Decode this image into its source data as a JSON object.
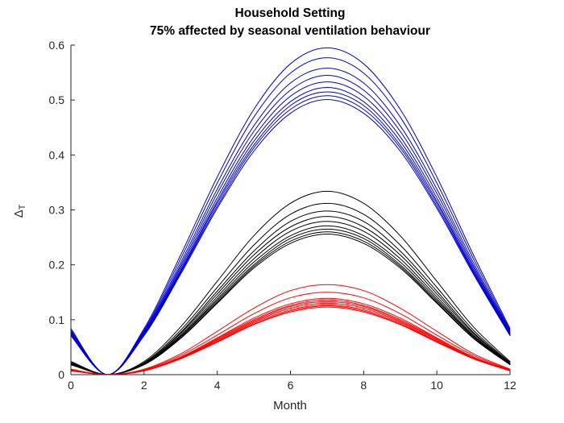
{
  "figure": {
    "background": "#ffffff",
    "axis_color": "#262626"
  },
  "chart_data": {
    "type": "line",
    "title": "Household Setting",
    "subtitle": "75% affected by seasonal ventilation behaviour",
    "xlabel": "Month",
    "ylabel": {
      "base": "Δ",
      "sub": "T"
    },
    "xlim": [
      0,
      12
    ],
    "ylim": [
      0,
      0.6
    ],
    "xticks": [
      0,
      2,
      4,
      6,
      8,
      10,
      12
    ],
    "xtick_labels": [
      "0",
      "2",
      "4",
      "6",
      "8",
      "10",
      "12"
    ],
    "ytick_values": [
      0,
      0.1,
      0.2,
      0.3,
      0.4,
      0.5,
      0.6
    ],
    "ytick_labels": [
      "0",
      "0.1",
      "0.2",
      "0.3",
      "0.4",
      "0.5",
      "0.6"
    ],
    "grid": false,
    "legend": "none",
    "box": false,
    "colors": {
      "blue": "#0000CC",
      "black": "#000000",
      "red": "#FF0000"
    },
    "months": [
      0,
      1,
      2,
      3,
      4,
      5,
      6,
      7,
      8,
      9,
      10,
      11,
      12
    ],
    "series": [
      {
        "name": "blue-1",
        "group": "blue",
        "peak": 0.595,
        "values": [
          0.084,
          0,
          0.084,
          0.218,
          0.36,
          0.483,
          0.566,
          0.595,
          0.566,
          0.483,
          0.36,
          0.218,
          0.084
        ]
      },
      {
        "name": "blue-2",
        "group": "blue",
        "peak": 0.577,
        "values": [
          0.081,
          0,
          0.081,
          0.211,
          0.349,
          0.469,
          0.549,
          0.577,
          0.549,
          0.469,
          0.349,
          0.211,
          0.081
        ]
      },
      {
        "name": "blue-3",
        "group": "blue",
        "peak": 0.558,
        "values": [
          0.079,
          0,
          0.079,
          0.204,
          0.338,
          0.453,
          0.531,
          0.558,
          0.531,
          0.453,
          0.338,
          0.204,
          0.079
        ]
      },
      {
        "name": "blue-4",
        "group": "blue",
        "peak": 0.545,
        "values": [
          0.077,
          0,
          0.077,
          0.199,
          0.33,
          0.443,
          0.518,
          0.545,
          0.518,
          0.443,
          0.33,
          0.199,
          0.077
        ]
      },
      {
        "name": "blue-5",
        "group": "blue",
        "peak": 0.533,
        "values": [
          0.075,
          0,
          0.075,
          0.195,
          0.322,
          0.433,
          0.507,
          0.533,
          0.507,
          0.433,
          0.322,
          0.195,
          0.075
        ]
      },
      {
        "name": "blue-6",
        "group": "blue",
        "peak": 0.523,
        "values": [
          0.074,
          0,
          0.074,
          0.191,
          0.316,
          0.425,
          0.497,
          0.523,
          0.497,
          0.425,
          0.316,
          0.191,
          0.074
        ]
      },
      {
        "name": "blue-7",
        "group": "blue",
        "peak": 0.515,
        "values": [
          0.073,
          0,
          0.073,
          0.188,
          0.312,
          0.418,
          0.49,
          0.515,
          0.49,
          0.418,
          0.312,
          0.188,
          0.073
        ]
      },
      {
        "name": "blue-8",
        "group": "blue",
        "peak": 0.508,
        "values": [
          0.072,
          0,
          0.072,
          0.186,
          0.307,
          0.413,
          0.483,
          0.508,
          0.483,
          0.413,
          0.307,
          0.186,
          0.072
        ]
      },
      {
        "name": "blue-9",
        "group": "blue",
        "peak": 0.501,
        "values": [
          0.071,
          0,
          0.071,
          0.183,
          0.303,
          0.407,
          0.476,
          0.501,
          0.476,
          0.407,
          0.303,
          0.183,
          0.071
        ]
      },
      {
        "name": "black-1",
        "group": "black",
        "peak": 0.334,
        "values": [
          0.024,
          0,
          0.024,
          0.087,
          0.17,
          0.253,
          0.312,
          0.334,
          0.312,
          0.253,
          0.17,
          0.087,
          0.024
        ]
      },
      {
        "name": "black-2",
        "group": "black",
        "peak": 0.312,
        "values": [
          0.022,
          0,
          0.022,
          0.081,
          0.159,
          0.236,
          0.292,
          0.312,
          0.292,
          0.236,
          0.159,
          0.081,
          0.022
        ]
      },
      {
        "name": "black-3",
        "group": "black",
        "peak": 0.298,
        "values": [
          0.021,
          0,
          0.021,
          0.077,
          0.152,
          0.225,
          0.279,
          0.298,
          0.279,
          0.225,
          0.152,
          0.077,
          0.021
        ]
      },
      {
        "name": "black-4",
        "group": "black",
        "peak": 0.288,
        "values": [
          0.021,
          0,
          0.021,
          0.075,
          0.147,
          0.218,
          0.269,
          0.288,
          0.269,
          0.218,
          0.147,
          0.075,
          0.021
        ]
      },
      {
        "name": "black-5",
        "group": "black",
        "peak": 0.279,
        "values": [
          0.02,
          0,
          0.02,
          0.072,
          0.142,
          0.211,
          0.261,
          0.279,
          0.261,
          0.211,
          0.142,
          0.072,
          0.02
        ]
      },
      {
        "name": "black-6",
        "group": "black",
        "peak": 0.271,
        "values": [
          0.02,
          0,
          0.02,
          0.07,
          0.138,
          0.205,
          0.253,
          0.271,
          0.253,
          0.205,
          0.138,
          0.07,
          0.02
        ]
      },
      {
        "name": "black-7",
        "group": "black",
        "peak": 0.265,
        "values": [
          0.019,
          0,
          0.019,
          0.069,
          0.135,
          0.2,
          0.248,
          0.265,
          0.248,
          0.2,
          0.135,
          0.069,
          0.019
        ]
      },
      {
        "name": "black-8",
        "group": "black",
        "peak": 0.26,
        "values": [
          0.019,
          0,
          0.019,
          0.067,
          0.132,
          0.197,
          0.243,
          0.26,
          0.243,
          0.197,
          0.132,
          0.067,
          0.019
        ]
      },
      {
        "name": "black-9",
        "group": "black",
        "peak": 0.256,
        "values": [
          0.018,
          0,
          0.018,
          0.066,
          0.13,
          0.194,
          0.239,
          0.256,
          0.239,
          0.194,
          0.13,
          0.066,
          0.018
        ]
      },
      {
        "name": "red-1",
        "group": "red",
        "peak": 0.164,
        "values": [
          0.01,
          0,
          0.01,
          0.038,
          0.079,
          0.121,
          0.153,
          0.164,
          0.153,
          0.121,
          0.079,
          0.038,
          0.01
        ]
      },
      {
        "name": "red-2",
        "group": "red",
        "peak": 0.15,
        "values": [
          0.009,
          0,
          0.009,
          0.035,
          0.072,
          0.111,
          0.14,
          0.15,
          0.14,
          0.111,
          0.072,
          0.035,
          0.009
        ]
      },
      {
        "name": "red-3",
        "group": "red",
        "peak": 0.139,
        "values": [
          0.008,
          0,
          0.008,
          0.032,
          0.067,
          0.103,
          0.129,
          0.139,
          0.129,
          0.103,
          0.067,
          0.032,
          0.008
        ]
      },
      {
        "name": "red-4",
        "group": "red",
        "peak": 0.136,
        "values": [
          0.008,
          0,
          0.008,
          0.032,
          0.066,
          0.1,
          0.126,
          0.136,
          0.126,
          0.1,
          0.066,
          0.032,
          0.008
        ]
      },
      {
        "name": "red-5",
        "group": "red",
        "peak": 0.133,
        "values": [
          0.008,
          0,
          0.008,
          0.031,
          0.064,
          0.098,
          0.124,
          0.133,
          0.124,
          0.098,
          0.064,
          0.031,
          0.008
        ]
      },
      {
        "name": "red-6",
        "group": "red",
        "peak": 0.13,
        "values": [
          0.008,
          0,
          0.008,
          0.03,
          0.063,
          0.096,
          0.121,
          0.13,
          0.121,
          0.096,
          0.063,
          0.03,
          0.008
        ]
      },
      {
        "name": "red-7",
        "group": "red",
        "peak": 0.127,
        "values": [
          0.007,
          0,
          0.007,
          0.03,
          0.061,
          0.094,
          0.118,
          0.127,
          0.118,
          0.094,
          0.061,
          0.03,
          0.007
        ]
      },
      {
        "name": "red-8",
        "group": "red",
        "peak": 0.125,
        "values": [
          0.007,
          0,
          0.007,
          0.029,
          0.06,
          0.092,
          0.116,
          0.125,
          0.116,
          0.092,
          0.06,
          0.029,
          0.007
        ]
      },
      {
        "name": "red-9",
        "group": "red",
        "peak": 0.123,
        "values": [
          0.007,
          0,
          0.007,
          0.029,
          0.059,
          0.091,
          0.114,
          0.123,
          0.114,
          0.091,
          0.059,
          0.029,
          0.007
        ]
      }
    ]
  }
}
